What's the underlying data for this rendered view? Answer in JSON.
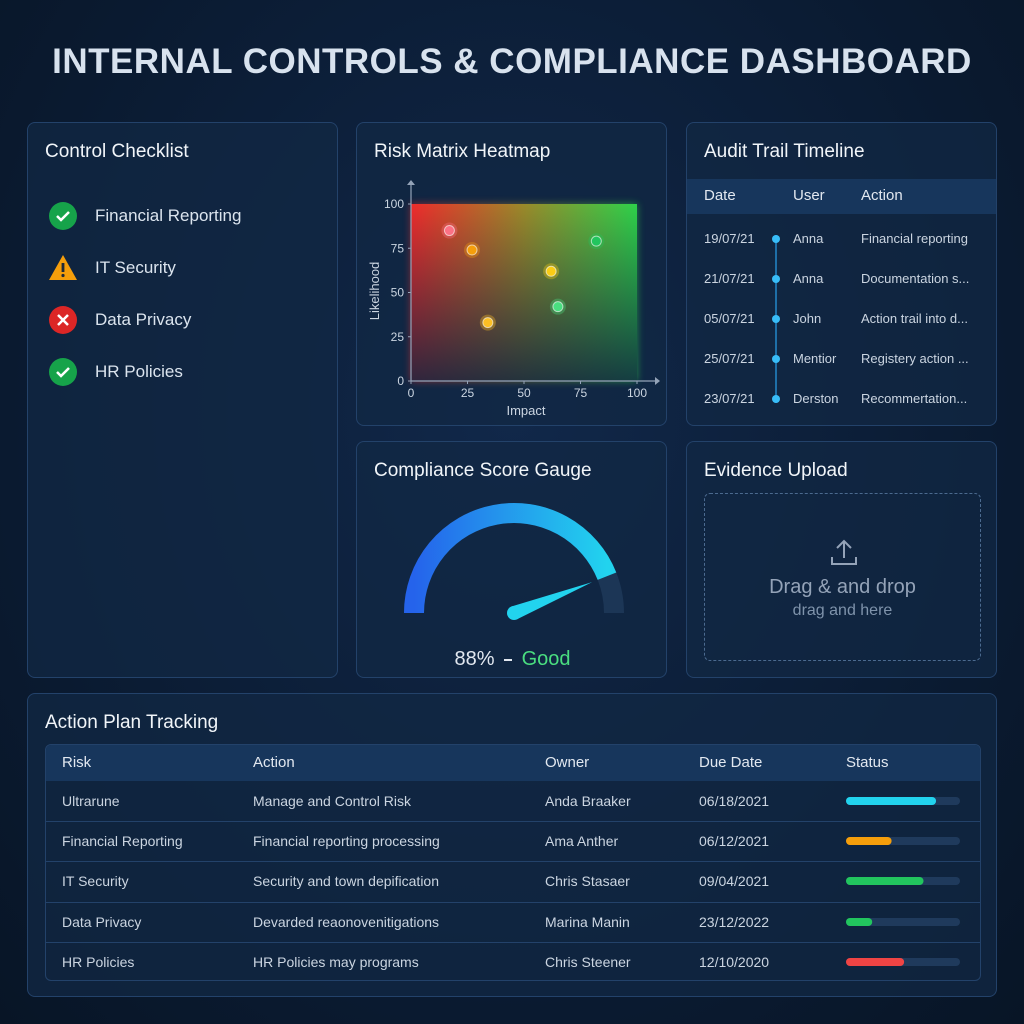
{
  "header": {
    "title": "INTERNAL CONTROLS & COMPLIANCE DASHBOARD"
  },
  "checklist": {
    "title": "Control Checklist",
    "items": [
      "Financial Reporting",
      "IT Security",
      "Data Privacy",
      "HR Policies"
    ]
  },
  "risk_matrix": {
    "title": "Risk Matrix Heatmap",
    "type": "scatter",
    "x_label": "Impact",
    "y_label": "Likelihood",
    "xlim": [
      0,
      100
    ],
    "ylim": [
      0,
      100
    ],
    "xticks": [
      0,
      25,
      50,
      75,
      100
    ],
    "yticks": [
      0,
      25,
      50,
      75,
      100
    ],
    "x": [
      17,
      27,
      62,
      82,
      65,
      34
    ],
    "y": [
      85,
      74,
      62,
      79,
      42,
      33
    ],
    "colors": [
      "#fb7185",
      "#f59e0b",
      "#facc15",
      "#22c55e",
      "#4ade80",
      "#fbbf24"
    ]
  },
  "audit_trail": {
    "title": "Audit Trail Timeline",
    "columns": [
      "Date",
      "User",
      "Action"
    ],
    "rows": [
      [
        "19/07/21",
        "Anna",
        "Financial reporting"
      ],
      [
        "21/07/21",
        "Anna",
        "Documentation s..."
      ],
      [
        "05/07/21",
        "John",
        "Action trail into d..."
      ],
      [
        "25/07/21",
        "Mentior",
        "Registery action ..."
      ],
      [
        "23/07/21",
        "Derston",
        "Recommertation..."
      ]
    ]
  },
  "gauge": {
    "title": "Compliance Score Gauge",
    "type": "gauge",
    "value": 88,
    "value_label": "88%",
    "rating": "Good",
    "range": [
      0,
      100
    ]
  },
  "evidence_upload": {
    "title": "Evidence Upload",
    "primary_text": "Drag & and drop",
    "secondary_text": "drag and here"
  },
  "action_plan": {
    "title": "Action Plan Tracking",
    "columns": [
      "Risk",
      "Action",
      "Owner",
      "Due Date",
      "Status"
    ],
    "rows": [
      [
        "Ultrarune",
        "Manage and Control Risk",
        "Anda Braaker",
        "06/18/2021"
      ],
      [
        "Financial Reporting",
        "Financial reporting processing",
        "Ama Anther",
        "06/12/2021"
      ],
      [
        "IT Security",
        "Security and town depification",
        "Chris Stasaer",
        "09/04/2021"
      ],
      [
        "Data Privacy",
        "Devarded reaonovenitigations",
        "Marina Manin",
        "23/12/2022"
      ],
      [
        "HR Policies",
        "HR Policies may programs",
        "Chris Steener",
        "12/10/2020"
      ]
    ],
    "status": [
      79,
      40,
      68,
      23,
      51
    ],
    "status_colors": [
      "#22d3ee",
      "#f59e0b",
      "#22c55e",
      "#22c55e",
      "#ef4444"
    ],
    "status_range": [
      0,
      100
    ]
  }
}
